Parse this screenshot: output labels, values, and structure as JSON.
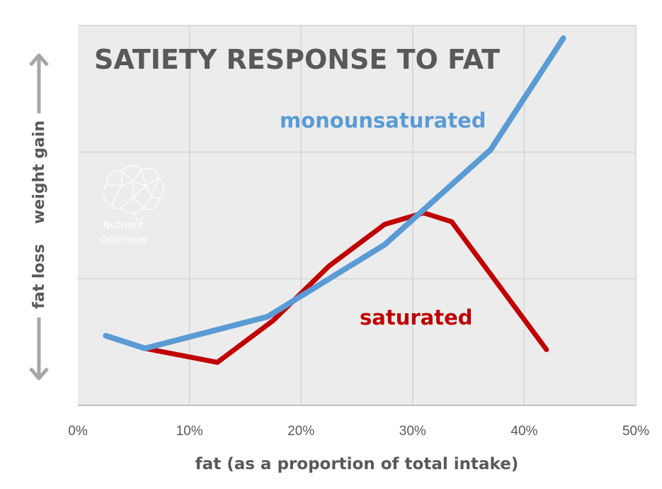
{
  "chart_data": {
    "type": "line",
    "title": "SATIETY RESPONSE TO FAT",
    "xlabel": "fat (as a proportion of total intake)",
    "ylabel_top": "weight gain",
    "ylabel_bottom": "fat loss",
    "xlim": [
      0,
      50
    ],
    "ylim": [
      0,
      3
    ],
    "x_ticks": [
      0,
      10,
      20,
      30,
      40,
      50
    ],
    "x_tick_labels": [
      "0%",
      "10%",
      "20%",
      "30%",
      "40%",
      "50%"
    ],
    "y_gridlines": [
      1,
      2,
      3
    ],
    "series": [
      {
        "name": "monounsaturated",
        "color": "#5b9bd5",
        "x": [
          2.5,
          6,
          17,
          27.5,
          37,
          43.5
        ],
        "y": [
          0.55,
          0.45,
          0.7,
          1.27,
          2.02,
          2.9
        ]
      },
      {
        "name": "saturated",
        "color": "#c00000",
        "x": [
          6,
          12.5,
          17.5,
          22.5,
          27.5,
          31,
          33.5,
          42
        ],
        "y": [
          0.45,
          0.34,
          0.67,
          1.1,
          1.43,
          1.52,
          1.45,
          0.44
        ]
      }
    ],
    "watermark": {
      "brand": "Nutrient Optimiser",
      "icon": "brain-icon"
    }
  }
}
